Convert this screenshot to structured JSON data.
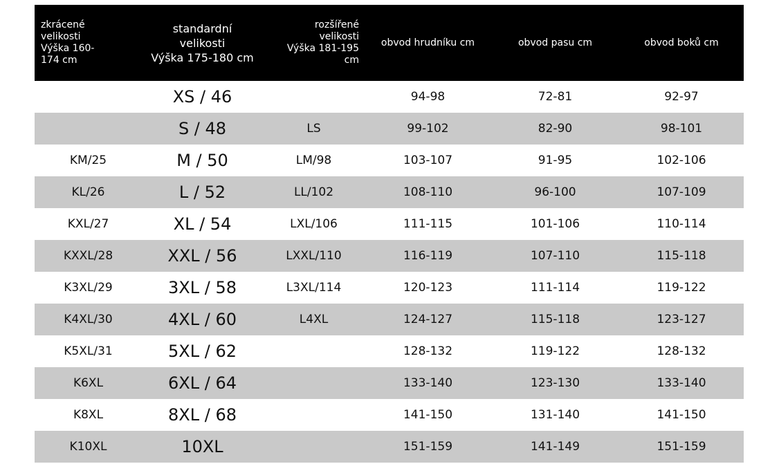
{
  "table": {
    "header": [
      [
        "zkrácené",
        "velikosti",
        "Výška 160-",
        "174 cm"
      ],
      [
        "standardní",
        "velikosti",
        "Výška 175-180 cm"
      ],
      [
        "rozšířené",
        "velikosti",
        "Výška 181-195",
        "cm"
      ],
      [
        "obvod hrudníku cm"
      ],
      [
        "obvod pasu cm"
      ],
      [
        "obvod boků cm"
      ]
    ],
    "rows": [
      [
        null,
        "XS / 46",
        null,
        "94-98",
        "72-81",
        "92-97"
      ],
      [
        null,
        "S / 48",
        "LS",
        "99-102",
        "82-90",
        "98-101"
      ],
      [
        "KM/25",
        "M / 50",
        "LM/98",
        "103-107",
        "91-95",
        "102-106"
      ],
      [
        "KL/26",
        "L / 52",
        "LL/102",
        "108-110",
        "96-100",
        "107-109"
      ],
      [
        "KXL/27",
        "XL / 54",
        "LXL/106",
        "111-115",
        "101-106",
        "110-114"
      ],
      [
        "KXXL/28",
        "XXL / 56",
        "LXXL/110",
        "116-119",
        "107-110",
        "115-118"
      ],
      [
        "K3XL/29",
        "3XL / 58",
        "L3XL/114",
        "120-123",
        "111-114",
        "119-122"
      ],
      [
        "K4XL/30",
        "4XL / 60",
        "L4XL",
        "124-127",
        "115-118",
        "123-127"
      ],
      [
        "K5XL/31",
        "5XL / 62",
        null,
        "128-132",
        "119-122",
        "128-132"
      ],
      [
        "K6XL",
        "6XL / 64",
        null,
        "133-140",
        "123-130",
        "133-140"
      ],
      [
        "K8XL",
        "8XL / 68",
        null,
        "141-150",
        "131-140",
        "141-150"
      ],
      [
        "K10XL",
        "10XL",
        null,
        "151-159",
        "141-149",
        "151-159"
      ]
    ]
  }
}
